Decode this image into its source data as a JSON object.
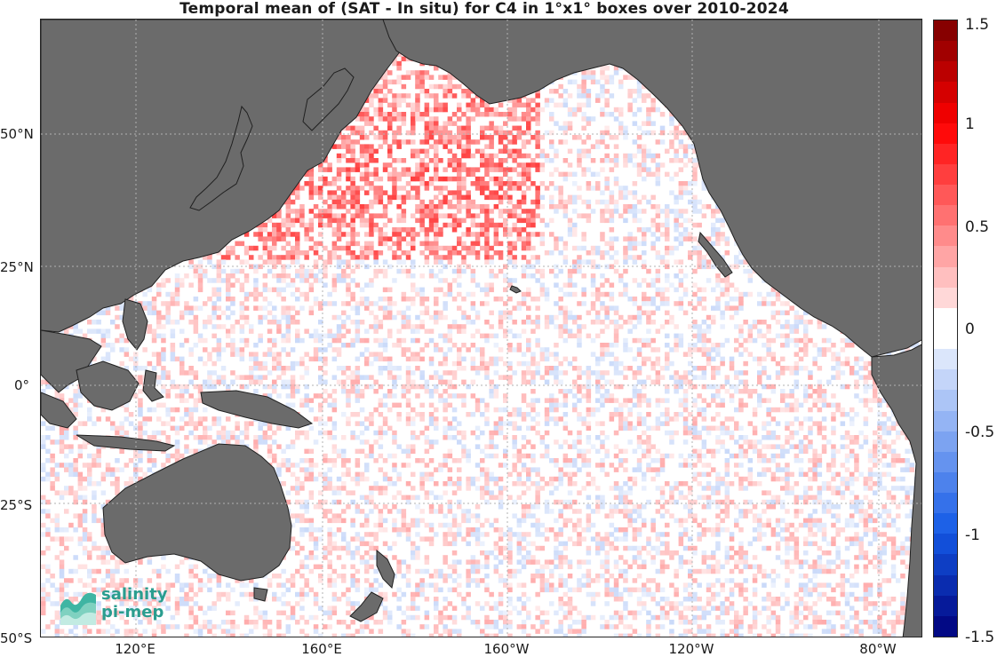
{
  "title": "Temporal mean of (SAT - In situ) for C4 in 1°x1° boxes over 2010-2024",
  "map": {
    "lat_ticks": [
      "50°N",
      "25°N",
      "0°",
      "25°S",
      "50°S"
    ],
    "lon_ticks": [
      "120°E",
      "160°E",
      "160°W",
      "120°W",
      "80°W"
    ],
    "land_color": "#6b6b6b",
    "ocean_color": "#ffffff",
    "grid": true
  },
  "colorbar": {
    "range": [
      -1.5,
      1.5
    ],
    "tick_labels": [
      "1.5",
      "1",
      "0.5",
      "0",
      "-0.5",
      "-1",
      "-1.5"
    ],
    "colors": {
      "negative_max": "#00007a",
      "neutral": "#ffffff",
      "positive_max": "#7a0000"
    }
  },
  "logo": {
    "line1": "salinity",
    "line2": "pi-mep",
    "color": "#2a9d8f"
  }
}
